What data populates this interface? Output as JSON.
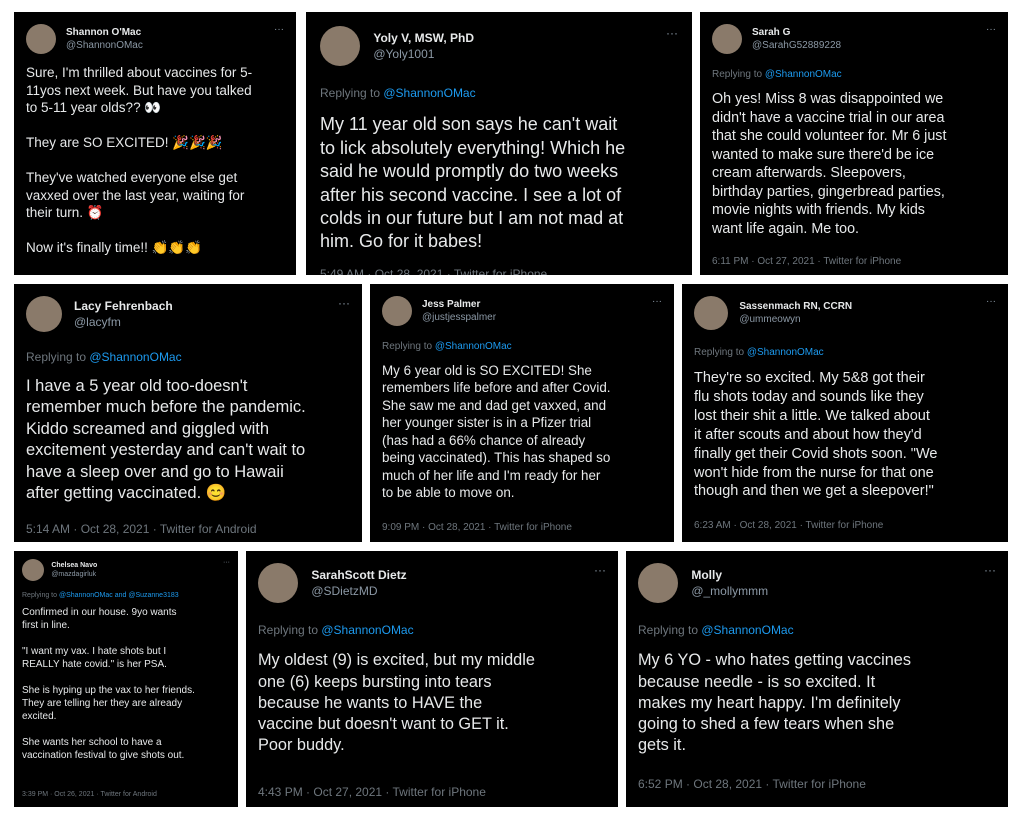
{
  "tweets": [
    {
      "name": "Shannon O'Mac",
      "handle": "@ShannonOMac",
      "reply_prefix": "",
      "reply_to": "",
      "body": "Sure, I'm thrilled about vaccines for 5-\n11yos next week. But have you talked\nto 5-11 year olds?? 👀\n\nThey are SO EXCITED! 🎉🎉🎉\n\nThey've watched everyone else get\nvaxxed over the last year, waiting for\ntheir turn. ⏰\n\nNow it's finally time!! 👏👏👏",
      "footer": ""
    },
    {
      "name": "Yoly V, MSW, PhD",
      "handle": "@Yoly1001",
      "reply_prefix": "Replying to ",
      "reply_to": "@ShannonOMac",
      "body": "My 11 year old son says he can't wait\nto lick absolutely everything! Which he\nsaid he would promptly do two weeks\nafter his second vaccine. I see a lot of\ncolds in our future but I am not mad at\nhim. Go for it babes!",
      "footer": "5:49 AM · Oct 28, 2021 · Twitter for iPhone"
    },
    {
      "name": "Sarah G",
      "handle": "@SarahG52889228",
      "reply_prefix": "Replying to ",
      "reply_to": "@ShannonOMac",
      "body": "Oh yes! Miss 8 was disappointed we\ndidn't have a vaccine trial in our area\nthat she could volunteer for. Mr 6 just\nwanted to make sure there'd be ice\ncream afterwards. Sleepovers,\nbirthday parties, gingerbread parties,\nmovie nights with friends. My kids\nwant life again. Me too.",
      "footer": "6:11 PM · Oct 27, 2021 · Twitter for iPhone"
    },
    {
      "name": "Lacy Fehrenbach",
      "handle": "@lacyfm",
      "reply_prefix": "Replying to ",
      "reply_to": "@ShannonOMac",
      "body": "I have a 5 year old too-doesn't\nremember much before the pandemic.\nKiddo screamed and giggled with\nexcitement yesterday and can't wait to\nhave a sleep over and go to Hawaii\nafter getting vaccinated. 😊",
      "footer": "5:14 AM · Oct 28, 2021 · Twitter for Android"
    },
    {
      "name": "Jess Palmer",
      "handle": "@justjesspalmer",
      "reply_prefix": "Replying to ",
      "reply_to": "@ShannonOMac",
      "body": "My 6 year old is SO EXCITED! She\nremembers life before and after Covid.\nShe saw me and dad get vaxxed, and\nher younger sister is in a Pfizer trial\n(has had a 66% chance of already\nbeing vaccinated). This has shaped so\nmuch of her life and I'm ready for her\nto be able to move on.",
      "footer": "9:09 PM · Oct 28, 2021 · Twitter for iPhone"
    },
    {
      "name": "Sassenmach RN, CCRN",
      "handle": "@ummeowyn",
      "reply_prefix": "Replying to ",
      "reply_to": "@ShannonOMac",
      "body": "They're so excited. My 5&8 got their\nflu shots today and sounds like they\nlost their shit a little. We talked about\nit after scouts and about how they'd\nfinally get their Covid shots soon. \"We\nwon't hide from the nurse for that one\nthough and then we get a sleepover!\"",
      "footer": "6:23 AM · Oct 28, 2021 · Twitter for iPhone"
    },
    {
      "name": "Chelsea Navo",
      "handle": "@mazdagirluk",
      "reply_prefix": "Replying to ",
      "reply_to": "@ShannonOMac and @Suzanne3183",
      "body": "Confirmed in our house. 9yo wants\nfirst in line.\n\n\"I want my vax. I hate shots but I\nREALLY hate covid.\" is her PSA.\n\nShe is hyping up the vax to her friends.\nThey are telling her they are already\nexcited.\n\nShe wants her school to have a\nvaccination festival to give shots out.",
      "footer": "3:39 PM · Oct 26, 2021 · Twitter for Android"
    },
    {
      "name": "SarahScott Dietz",
      "handle": "@SDietzMD",
      "reply_prefix": "Replying to ",
      "reply_to": "@ShannonOMac",
      "body": "My oldest (9) is excited, but my middle\none (6) keeps bursting into tears\nbecause he wants to HAVE the\nvaccine but doesn't want to GET it.\nPoor buddy.",
      "footer": "4:43 PM · Oct 27, 2021 · Twitter for iPhone"
    },
    {
      "name": "Molly",
      "handle": "@_mollymmm",
      "reply_prefix": "Replying to ",
      "reply_to": "@ShannonOMac",
      "body": "My 6 YO - who hates getting vaccines\nbecause needle - is so excited. It\nmakes my heart happy. I'm definitely\ngoing to shed a few tears when she\ngets it.",
      "footer": "6:52 PM · Oct 28, 2021 · Twitter for iPhone"
    }
  ],
  "more_icon": "···"
}
